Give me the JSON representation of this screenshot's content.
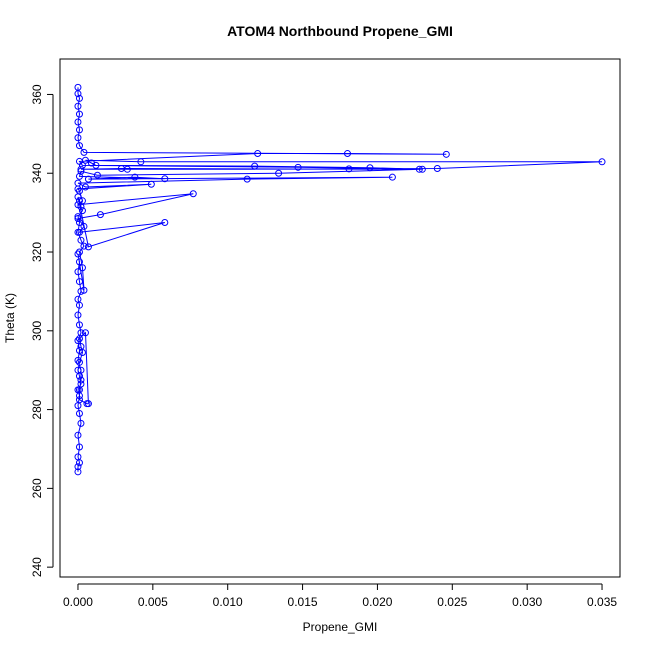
{
  "chart_data": {
    "type": "line",
    "title": "ATOM4 Northbound Propene_GMI",
    "xlabel": "Propene_GMI",
    "ylabel": "Theta (K)",
    "xlim": [
      -0.0012,
      0.0362
    ],
    "ylim": [
      237.5,
      369
    ],
    "xticks": [
      0.0,
      0.005,
      0.01,
      0.015,
      0.02,
      0.025,
      0.03,
      0.035
    ],
    "xtick_labels": [
      "0.000",
      "0.005",
      "0.010",
      "0.015",
      "0.020",
      "0.025",
      "0.030",
      "0.035"
    ],
    "yticks": [
      240,
      260,
      280,
      300,
      320,
      340,
      360
    ],
    "ytick_labels": [
      "240",
      "260",
      "280",
      "300",
      "320",
      "340",
      "360"
    ],
    "grid": false,
    "legend": "none",
    "colors": {
      "series": "#0000ff",
      "axis": "#000000",
      "background": "#ffffff"
    },
    "series": [
      {
        "x": [
          0.0,
          0.0,
          0.0001,
          0.0,
          0.0001,
          0.0,
          0.0002,
          0.0001,
          0.0,
          0.0001,
          0.0,
          0.0002,
          0.0001,
          0.0,
          0.0001,
          0.0003,
          0.0002,
          0.0001,
          0.0005,
          0.0007,
          0.0006,
          0.0001,
          0.0001,
          0.0002,
          0.0002,
          0.0,
          0.0001,
          0.0,
          0.0002,
          0.0001,
          0.0,
          0.0001,
          0.0,
          0.0002,
          0.0001,
          0.0,
          0.0001,
          0.0,
          0.0004,
          0.0003,
          0.0001,
          0.0004,
          0.0002,
          0.0,
          0.0001,
          0.0,
          0.0003,
          0.0002,
          0.0001,
          0.0,
          0.0007,
          0.0058,
          0.0001,
          0.0004,
          0.0,
          0.0015,
          0.0077,
          0.0,
          0.0003,
          0.0001,
          0.0,
          0.0049,
          0.0005,
          0.0,
          0.0113,
          0.021,
          0.0007,
          0.0038,
          0.0058,
          0.0001,
          0.0002,
          0.0013,
          0.0134,
          0.023,
          0.0029,
          0.0002,
          0.0033,
          0.0181,
          0.024,
          0.035,
          0.0042,
          0.0005,
          0.0009,
          0.0012,
          0.0118,
          0.0195,
          0.0228,
          0.0147,
          0.0003,
          0.0001,
          0.012,
          0.018,
          0.0246,
          0.0004,
          0.0001,
          0.0,
          0.0001,
          0.0,
          0.0001,
          0.0,
          0.0001,
          0.0,
          0.0
        ],
        "y": [
          264.2,
          265.5,
          266.5,
          268.0,
          270.5,
          273.5,
          276.5,
          279.0,
          281.0,
          283.5,
          285.0,
          286.5,
          288.5,
          290.0,
          292.0,
          294.5,
          296.0,
          298.0,
          299.5,
          281.5,
          281.5,
          282.5,
          285.0,
          287.5,
          290.0,
          292.5,
          295.0,
          297.5,
          299.5,
          301.5,
          304.0,
          306.5,
          308.0,
          310.0,
          312.5,
          315.0,
          317.5,
          319.5,
          310.3,
          316.0,
          320.0,
          321.5,
          323.0,
          325.0,
          327.5,
          329.0,
          330.5,
          331.5,
          333.0,
          334.0,
          321.3,
          327.5,
          325.0,
          326.5,
          328.5,
          329.5,
          334.8,
          332.0,
          333.0,
          335.5,
          336.0,
          337.2,
          336.5,
          337.5,
          338.5,
          339.0,
          338.5,
          339.0,
          338.6,
          339.2,
          340.5,
          339.5,
          340.0,
          341.0,
          341.2,
          341.0,
          341.0,
          341.1,
          341.2,
          342.9,
          342.9,
          343.3,
          342.6,
          342.0,
          341.8,
          341.4,
          341.0,
          341.5,
          342.0,
          343.0,
          345.0,
          345.0,
          344.8,
          345.3,
          347.0,
          349.0,
          351.0,
          353.0,
          355.0,
          357.0,
          359.0,
          360.2,
          361.8
        ]
      }
    ]
  }
}
